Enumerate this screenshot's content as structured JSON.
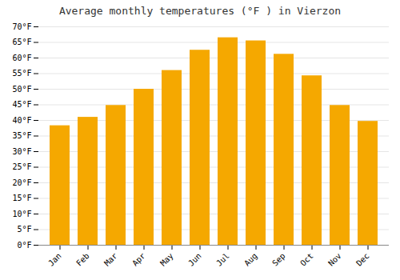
{
  "chart_data": {
    "type": "bar",
    "title": "Average monthly temperatures (°F ) in Vierzon",
    "categories": [
      "Jan",
      "Feb",
      "Mar",
      "Apr",
      "May",
      "Jun",
      "Jul",
      "Aug",
      "Sep",
      "Oct",
      "Nov",
      "Dec"
    ],
    "values": [
      38.3,
      41.0,
      44.8,
      50.0,
      56.0,
      62.5,
      66.5,
      65.5,
      61.2,
      54.3,
      44.8,
      39.7
    ],
    "color": "#F5A800",
    "ylim": [
      0,
      70
    ],
    "yticks": [
      {
        "value": 0,
        "label": "0°F"
      },
      {
        "value": 5,
        "label": "5°F"
      },
      {
        "value": 10,
        "label": "10°F"
      },
      {
        "value": 15,
        "label": "15°F"
      },
      {
        "value": 20,
        "label": "20°F"
      },
      {
        "value": 25,
        "label": "25°F"
      },
      {
        "value": 30,
        "label": "30°F"
      },
      {
        "value": 35,
        "label": "35°F"
      },
      {
        "value": 40,
        "label": "40°F"
      },
      {
        "value": 45,
        "label": "45°F"
      },
      {
        "value": 50,
        "label": "50°F"
      },
      {
        "value": 55,
        "label": "55°F"
      },
      {
        "value": 60,
        "label": "60°F"
      },
      {
        "value": 65,
        "label": "65°F"
      },
      {
        "value": 70,
        "label": "70°F"
      }
    ],
    "grid": true
  }
}
